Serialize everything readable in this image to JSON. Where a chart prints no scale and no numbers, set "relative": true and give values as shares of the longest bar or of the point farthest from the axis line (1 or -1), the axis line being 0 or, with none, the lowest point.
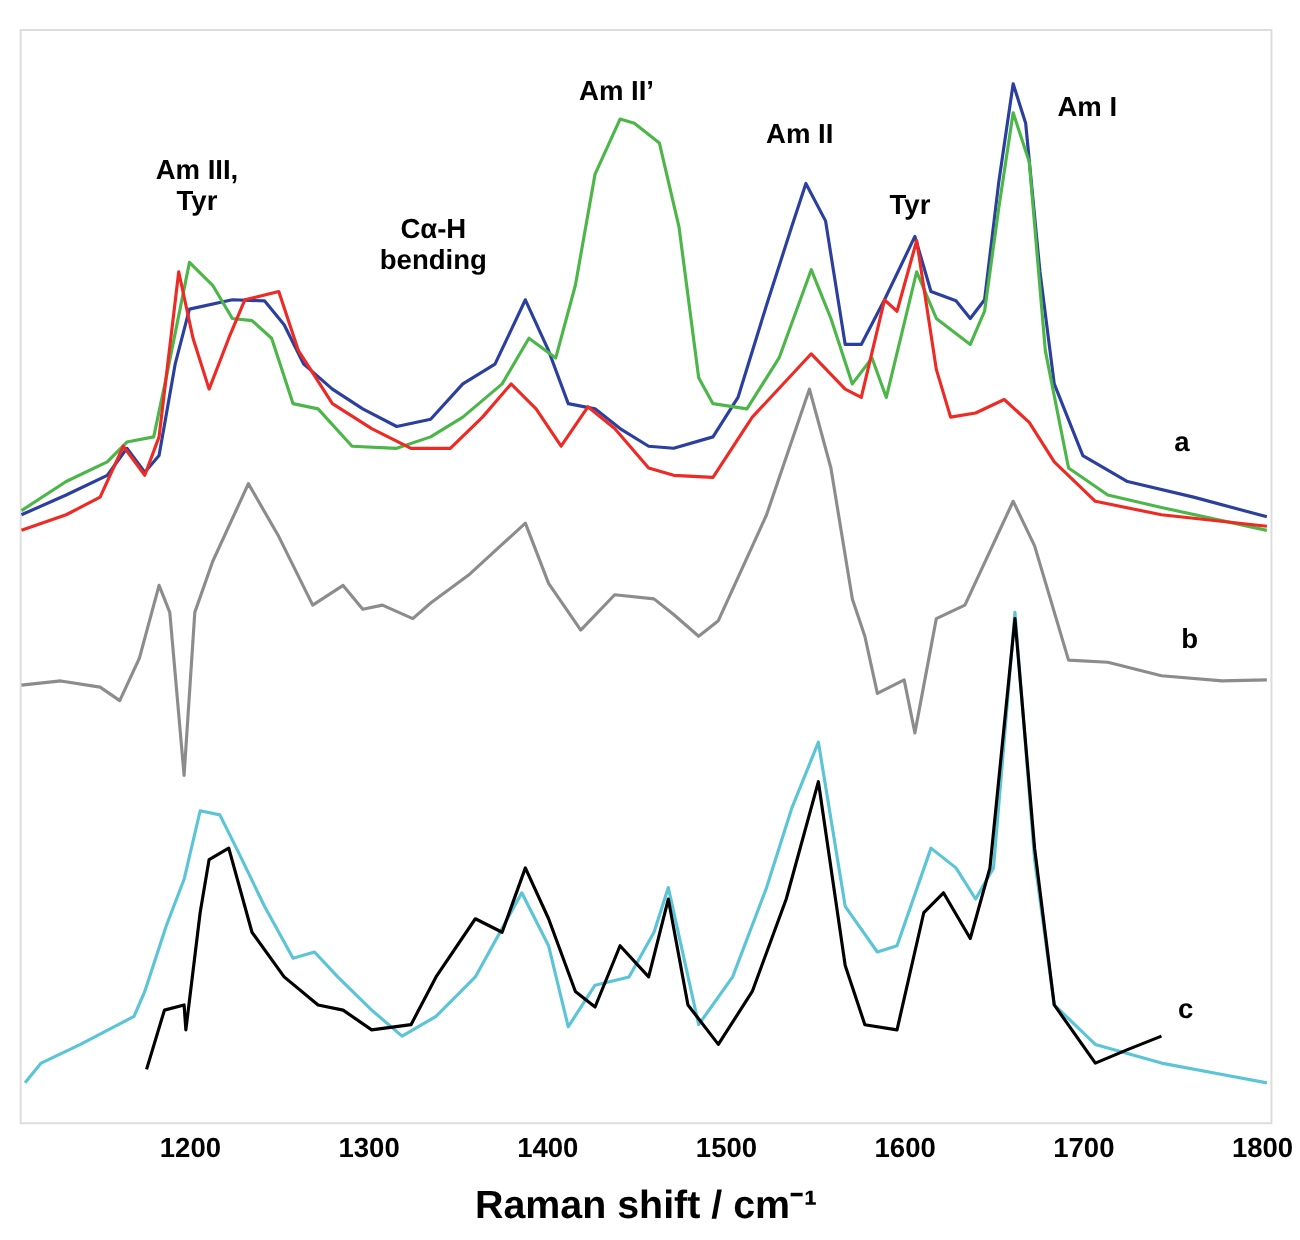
{
  "chart_data": {
    "type": "line",
    "relative": true,
    "xlabel": "Raman shift / cm⁻¹",
    "xlim": [
      1105,
      1805
    ],
    "xticks": [
      1200,
      1300,
      1400,
      1500,
      1600,
      1700,
      1800
    ],
    "grid": false,
    "marker": "none",
    "line_style": "solid",
    "series": [
      {
        "color": "#2b3f9e",
        "x": [
          1106,
          1131,
          1154,
          1165,
          1175,
          1183,
          1192,
          1200,
          1224,
          1242,
          1253,
          1264,
          1280,
          1297,
          1316,
          1335,
          1353,
          1371,
          1388,
          1401,
          1412,
          1427,
          1441,
          1457,
          1471,
          1493,
          1507,
          1523,
          1537,
          1545,
          1556,
          1567,
          1576,
          1589,
          1606,
          1615,
          1629,
          1637,
          1645,
          1653,
          1661,
          1668,
          1676,
          1684,
          1700,
          1725,
          1762,
          1803
        ],
        "values": [
          0.585,
          0.604,
          0.623,
          0.649,
          0.626,
          0.642,
          0.73,
          0.783,
          0.792,
          0.791,
          0.768,
          0.73,
          0.706,
          0.687,
          0.67,
          0.677,
          0.711,
          0.73,
          0.792,
          0.743,
          0.692,
          0.687,
          0.668,
          0.651,
          0.649,
          0.66,
          0.698,
          0.787,
          0.862,
          0.904,
          0.868,
          0.749,
          0.749,
          0.792,
          0.853,
          0.8,
          0.791,
          0.774,
          0.792,
          0.906,
          1.0,
          0.962,
          0.819,
          0.711,
          0.642,
          0.617,
          0.602,
          0.583
        ]
      },
      {
        "color": "#4cb748",
        "x": [
          1106,
          1131,
          1154,
          1165,
          1180,
          1187,
          1200,
          1213,
          1224,
          1235,
          1246,
          1258,
          1272,
          1291,
          1316,
          1335,
          1353,
          1375,
          1390,
          1405,
          1416,
          1427,
          1441,
          1449,
          1463,
          1474,
          1485,
          1493,
          1512,
          1530,
          1548,
          1559,
          1571,
          1582,
          1590,
          1607,
          1618,
          1637,
          1645,
          1653,
          1661,
          1670,
          1679,
          1692,
          1714,
          1744,
          1803
        ],
        "values": [
          0.589,
          0.617,
          0.636,
          0.655,
          0.66,
          0.717,
          0.828,
          0.806,
          0.774,
          0.772,
          0.755,
          0.692,
          0.687,
          0.651,
          0.649,
          0.66,
          0.679,
          0.711,
          0.755,
          0.736,
          0.806,
          0.913,
          0.966,
          0.962,
          0.943,
          0.862,
          0.717,
          0.692,
          0.687,
          0.736,
          0.821,
          0.774,
          0.711,
          0.736,
          0.698,
          0.819,
          0.774,
          0.749,
          0.781,
          0.881,
          0.972,
          0.925,
          0.743,
          0.63,
          0.604,
          0.592,
          0.57
        ]
      },
      {
        "color": "#ee2a24",
        "x": [
          1106,
          1131,
          1150,
          1163,
          1175,
          1183,
          1194,
          1202,
          1211,
          1222,
          1231,
          1250,
          1261,
          1280,
          1302,
          1324,
          1346,
          1364,
          1380,
          1394,
          1408,
          1423,
          1438,
          1457,
          1471,
          1493,
          1515,
          1548,
          1567,
          1576,
          1589,
          1596,
          1607,
          1618,
          1626,
          1640,
          1656,
          1670,
          1684,
          1707,
          1744,
          1803
        ],
        "values": [
          0.57,
          0.585,
          0.602,
          0.651,
          0.623,
          0.66,
          0.819,
          0.755,
          0.706,
          0.755,
          0.792,
          0.8,
          0.743,
          0.692,
          0.668,
          0.649,
          0.649,
          0.679,
          0.711,
          0.687,
          0.651,
          0.689,
          0.668,
          0.63,
          0.623,
          0.621,
          0.679,
          0.74,
          0.706,
          0.698,
          0.792,
          0.781,
          0.849,
          0.725,
          0.679,
          0.683,
          0.696,
          0.674,
          0.636,
          0.598,
          0.585,
          0.574
        ]
      },
      {
        "color": "#8c8c8c",
        "x": [
          1106,
          1128,
          1150,
          1161,
          1172,
          1183,
          1189,
          1197,
          1203,
          1213,
          1233,
          1250,
          1269,
          1286,
          1297,
          1308,
          1325,
          1335,
          1357,
          1388,
          1401,
          1419,
          1438,
          1460,
          1471,
          1485,
          1496,
          1523,
          1547,
          1559,
          1571,
          1578,
          1585,
          1600,
          1606,
          1618,
          1634,
          1661,
          1673,
          1692,
          1714,
          1744,
          1778,
          1803
        ],
        "values": [
          0.421,
          0.425,
          0.419,
          0.406,
          0.447,
          0.517,
          0.491,
          0.334,
          0.491,
          0.54,
          0.615,
          0.564,
          0.498,
          0.517,
          0.494,
          0.498,
          0.485,
          0.5,
          0.528,
          0.577,
          0.519,
          0.474,
          0.508,
          0.504,
          0.489,
          0.468,
          0.483,
          0.585,
          0.706,
          0.63,
          0.504,
          0.468,
          0.413,
          0.426,
          0.375,
          0.485,
          0.498,
          0.598,
          0.555,
          0.445,
          0.443,
          0.43,
          0.425,
          0.426
        ]
      },
      {
        "color": "#5bc4d6",
        "x": [
          1108,
          1117,
          1139,
          1169,
          1175,
          1187,
          1197,
          1206,
          1217,
          1228,
          1242,
          1258,
          1270,
          1283,
          1302,
          1319,
          1338,
          1360,
          1386,
          1401,
          1412,
          1427,
          1446,
          1460,
          1468,
          1485,
          1504,
          1523,
          1537,
          1552,
          1567,
          1585,
          1596,
          1615,
          1629,
          1640,
          1650,
          1662,
          1673,
          1684,
          1707,
          1744,
          1781,
          1803
        ],
        "values": [
          0.038,
          0.057,
          0.075,
          0.102,
          0.126,
          0.189,
          0.234,
          0.3,
          0.296,
          0.258,
          0.208,
          0.158,
          0.164,
          0.14,
          0.108,
          0.083,
          0.102,
          0.14,
          0.221,
          0.17,
          0.092,
          0.132,
          0.14,
          0.183,
          0.226,
          0.094,
          0.14,
          0.226,
          0.302,
          0.366,
          0.208,
          0.164,
          0.17,
          0.264,
          0.245,
          0.215,
          0.245,
          0.491,
          0.253,
          0.113,
          0.075,
          0.057,
          0.045,
          0.038
        ]
      },
      {
        "color": "#000000",
        "x": [
          1176,
          1186,
          1197,
          1198,
          1206,
          1211,
          1222,
          1235,
          1253,
          1272,
          1286,
          1302,
          1324,
          1338,
          1360,
          1375,
          1388,
          1401,
          1416,
          1427,
          1441,
          1457,
          1468,
          1479,
          1496,
          1515,
          1534,
          1552,
          1567,
          1578,
          1596,
          1611,
          1622,
          1637,
          1648,
          1662,
          1673,
          1684,
          1707,
          1725,
          1744
        ],
        "values": [
          0.051,
          0.108,
          0.113,
          0.089,
          0.202,
          0.253,
          0.264,
          0.183,
          0.14,
          0.113,
          0.108,
          0.089,
          0.094,
          0.14,
          0.196,
          0.183,
          0.245,
          0.196,
          0.126,
          0.111,
          0.17,
          0.14,
          0.215,
          0.113,
          0.075,
          0.126,
          0.215,
          0.328,
          0.151,
          0.094,
          0.089,
          0.202,
          0.221,
          0.177,
          0.245,
          0.485,
          0.264,
          0.113,
          0.057,
          0.07,
          0.083
        ]
      }
    ],
    "annotations": [
      "Am III,\nTyr",
      "Cα-H\nbending",
      "Am II’",
      "Am II",
      "Tyr",
      "Am I",
      "a",
      "b",
      "c"
    ]
  }
}
